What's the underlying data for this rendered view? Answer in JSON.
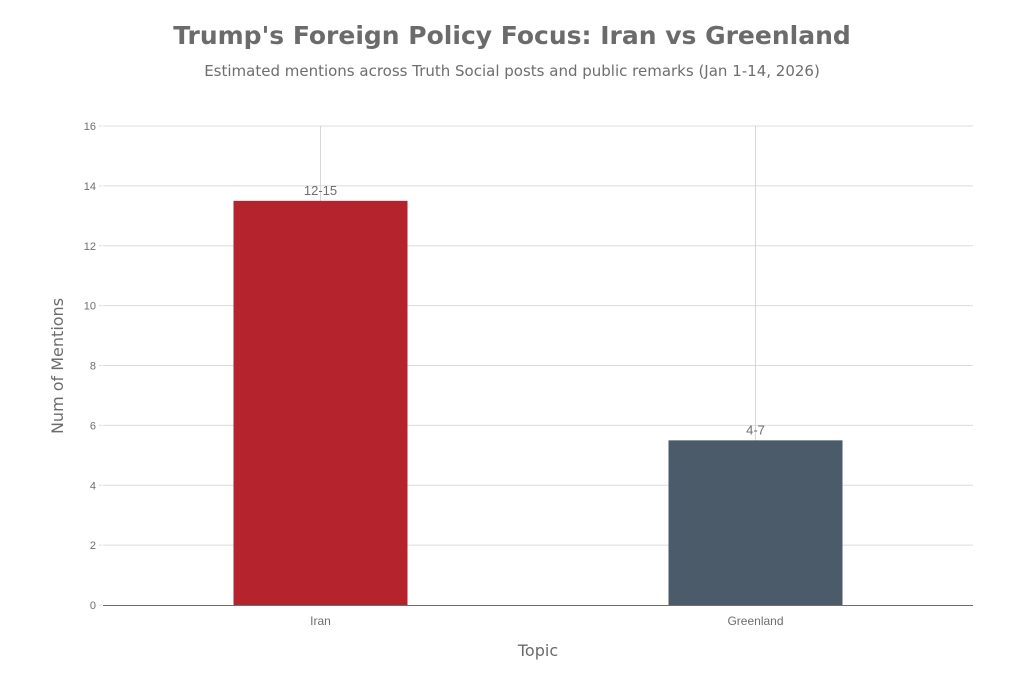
{
  "chart_data": {
    "type": "bar",
    "title": "Trump's Foreign Policy Focus: Iran vs Greenland",
    "subtitle": "Estimated mentions across Truth Social posts and public remarks (Jan 1-14, 2026)",
    "xlabel": "Topic",
    "ylabel": "Num of Mentions",
    "categories": [
      "Iran",
      "Greenland"
    ],
    "values": [
      13.5,
      5.5
    ],
    "data_labels": [
      "12-15",
      "4-7"
    ],
    "colors": [
      "#b5232d",
      "#4b5b6a"
    ],
    "ylim": [
      0,
      16
    ],
    "yticks": [
      0,
      2,
      4,
      6,
      8,
      10,
      12,
      14,
      16
    ],
    "grid": true,
    "legend": "none"
  }
}
